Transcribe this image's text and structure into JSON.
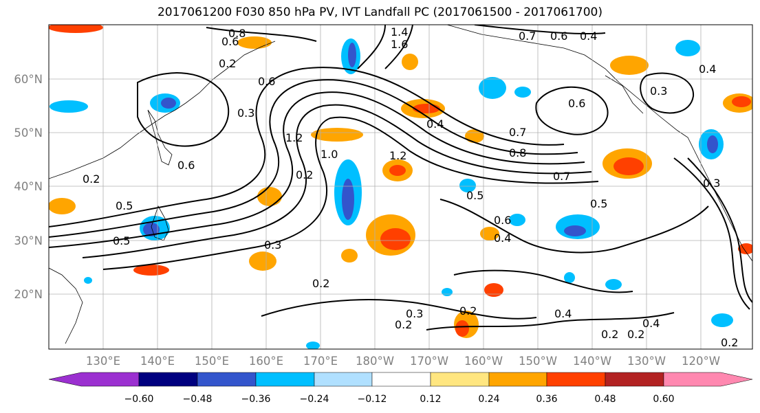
{
  "title": "2017061200 F030 850 hPa PV, IVT Landfall PC (2017061500 - 2017061700)",
  "map": {
    "lat_labels": [
      "60°N",
      "50°N",
      "40°N",
      "30°N",
      "20°N"
    ],
    "lon_labels": [
      "130°E",
      "140°E",
      "150°E",
      "160°E",
      "170°E",
      "180°W",
      "170°W",
      "160°W",
      "150°W",
      "140°W",
      "130°W",
      "120°W"
    ],
    "contour_labels": [
      "0.8",
      "0.6",
      "1.4",
      "1.6",
      "0.7",
      "0.6",
      "0.4",
      "0.2",
      "0.4",
      "0.6",
      "0.3",
      "0.6",
      "0.7",
      "0.8",
      "1.2",
      "1.0",
      "1.2",
      "0.4",
      "0.2",
      "0.3",
      "0.5",
      "0.6",
      "0.4",
      "0.7",
      "0.5",
      "0.3",
      "0.5",
      "0.3",
      "0.2",
      "0.2",
      "0.3",
      "0.2",
      "0.4",
      "0.2",
      "0.2",
      "0.4",
      "0.2",
      "0.2",
      "0.6",
      "0.5"
    ]
  },
  "colorbar": {
    "ticks": [
      "−0.60",
      "−0.48",
      "−0.36",
      "−0.24",
      "−0.12",
      "0.12",
      "0.24",
      "0.36",
      "0.48",
      "0.60"
    ],
    "colors": [
      "#9b30d0",
      "#00007f",
      "#3355cc",
      "#00bfff",
      "#b0e0ff",
      "#ffffff",
      "#ffe680",
      "#ffa500",
      "#ff4000",
      "#b22222",
      "#ff88b0"
    ]
  }
}
